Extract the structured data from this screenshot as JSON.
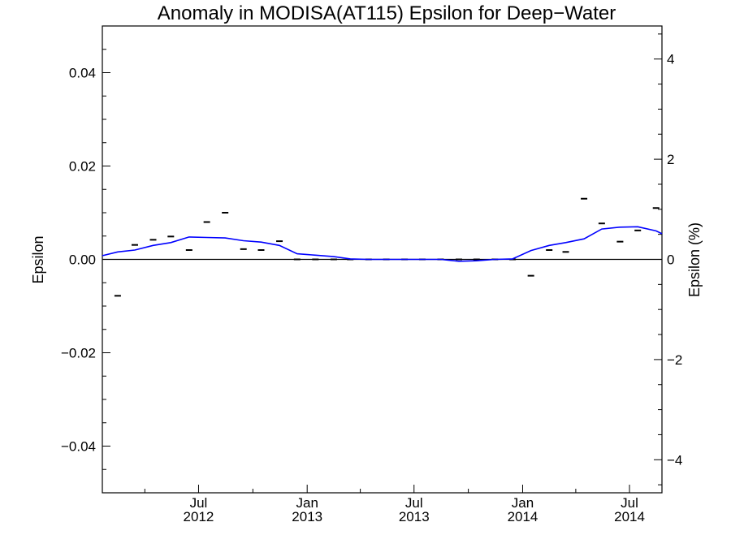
{
  "chart_data": {
    "type": "line",
    "title": "Anomaly in MODISA(AT115) Epsilon for Deep−Water",
    "ylabel_left": "Epsilon",
    "ylabel_right": "Epsilon (%)",
    "ylim_left": [
      -0.05,
      0.05
    ],
    "ylim_right": [
      -4.66,
      4.66
    ],
    "xlim": [
      "2012-01-20",
      "2014-08-25"
    ],
    "grid": false,
    "yticks_left": [
      {
        "value": 0.04,
        "label": "0.04"
      },
      {
        "value": 0.02,
        "label": "0.02"
      },
      {
        "value": 0.0,
        "label": "0.00"
      },
      {
        "value": -0.02,
        "label": "−0.02"
      },
      {
        "value": -0.04,
        "label": "−0.04"
      }
    ],
    "yticks_right": [
      {
        "value": 4,
        "label": "4"
      },
      {
        "value": 2,
        "label": "2"
      },
      {
        "value": 0,
        "label": "0"
      },
      {
        "value": -2,
        "label": "−2"
      },
      {
        "value": -4,
        "label": "−4"
      }
    ],
    "xticks": [
      {
        "date": "2012-07-01",
        "month": "Jul",
        "year": "2012"
      },
      {
        "date": "2013-01-01",
        "month": "Jan",
        "year": "2013"
      },
      {
        "date": "2013-07-01",
        "month": "Jul",
        "year": "2013"
      },
      {
        "date": "2014-01-01",
        "month": "Jan",
        "year": "2014"
      },
      {
        "date": "2014-07-01",
        "month": "Jul",
        "year": "2014"
      }
    ],
    "series": [
      {
        "kind": "markers",
        "color": "#000000",
        "points": [
          {
            "x": "2012-02-15",
            "y": -0.0078
          },
          {
            "x": "2012-03-15",
            "y": 0.0031
          },
          {
            "x": "2012-04-15",
            "y": 0.0042
          },
          {
            "x": "2012-05-15",
            "y": 0.0049
          },
          {
            "x": "2012-06-15",
            "y": 0.002
          },
          {
            "x": "2012-07-15",
            "y": 0.008
          },
          {
            "x": "2012-08-15",
            "y": 0.01
          },
          {
            "x": "2012-09-15",
            "y": 0.0022
          },
          {
            "x": "2012-10-15",
            "y": 0.002
          },
          {
            "x": "2012-11-15",
            "y": 0.0039
          },
          {
            "x": "2012-12-15",
            "y": 0.0
          },
          {
            "x": "2013-01-15",
            "y": 0.0
          },
          {
            "x": "2013-02-15",
            "y": 0.0
          },
          {
            "x": "2013-03-15",
            "y": 0.0
          },
          {
            "x": "2013-04-15",
            "y": 0.0
          },
          {
            "x": "2013-05-15",
            "y": 0.0
          },
          {
            "x": "2013-06-15",
            "y": 0.0
          },
          {
            "x": "2013-07-15",
            "y": 0.0
          },
          {
            "x": "2013-08-15",
            "y": 0.0
          },
          {
            "x": "2013-09-15",
            "y": 0.0
          },
          {
            "x": "2013-10-15",
            "y": 0.0
          },
          {
            "x": "2013-11-15",
            "y": 0.0
          },
          {
            "x": "2013-12-15",
            "y": 0.0
          },
          {
            "x": "2014-01-15",
            "y": -0.0035
          },
          {
            "x": "2014-02-15",
            "y": 0.002
          },
          {
            "x": "2014-03-15",
            "y": 0.0016
          },
          {
            "x": "2014-04-15",
            "y": 0.013
          },
          {
            "x": "2014-05-15",
            "y": 0.0077
          },
          {
            "x": "2014-06-15",
            "y": 0.0038
          },
          {
            "x": "2014-07-15",
            "y": 0.0062
          },
          {
            "x": "2014-08-15",
            "y": 0.011
          }
        ]
      },
      {
        "kind": "line",
        "color": "#0000ff",
        "points": [
          {
            "x": "2012-01-20",
            "y": 0.0008
          },
          {
            "x": "2012-02-15",
            "y": 0.0016
          },
          {
            "x": "2012-03-15",
            "y": 0.002
          },
          {
            "x": "2012-04-15",
            "y": 0.003
          },
          {
            "x": "2012-05-15",
            "y": 0.0036
          },
          {
            "x": "2012-06-15",
            "y": 0.0048
          },
          {
            "x": "2012-07-15",
            "y": 0.0047
          },
          {
            "x": "2012-08-15",
            "y": 0.0046
          },
          {
            "x": "2012-09-15",
            "y": 0.004
          },
          {
            "x": "2012-10-15",
            "y": 0.0037
          },
          {
            "x": "2012-11-15",
            "y": 0.003
          },
          {
            "x": "2012-12-15",
            "y": 0.0012
          },
          {
            "x": "2013-01-15",
            "y": 0.0009
          },
          {
            "x": "2013-02-15",
            "y": 0.0006
          },
          {
            "x": "2013-03-15",
            "y": 0.0001
          },
          {
            "x": "2013-04-15",
            "y": 0.0
          },
          {
            "x": "2013-05-15",
            "y": 0.0
          },
          {
            "x": "2013-06-15",
            "y": 0.0
          },
          {
            "x": "2013-07-15",
            "y": 0.0
          },
          {
            "x": "2013-08-15",
            "y": 0.0
          },
          {
            "x": "2013-09-15",
            "y": -0.0004
          },
          {
            "x": "2013-10-15",
            "y": -0.0003
          },
          {
            "x": "2013-11-15",
            "y": 0.0
          },
          {
            "x": "2013-12-15",
            "y": 0.0001
          },
          {
            "x": "2014-01-15",
            "y": 0.0019
          },
          {
            "x": "2014-02-15",
            "y": 0.003
          },
          {
            "x": "2014-03-15",
            "y": 0.0036
          },
          {
            "x": "2014-04-15",
            "y": 0.0044
          },
          {
            "x": "2014-05-15",
            "y": 0.0065
          },
          {
            "x": "2014-06-15",
            "y": 0.0069
          },
          {
            "x": "2014-07-15",
            "y": 0.007
          },
          {
            "x": "2014-08-15",
            "y": 0.0061
          },
          {
            "x": "2014-08-25",
            "y": 0.0055
          }
        ]
      }
    ]
  }
}
